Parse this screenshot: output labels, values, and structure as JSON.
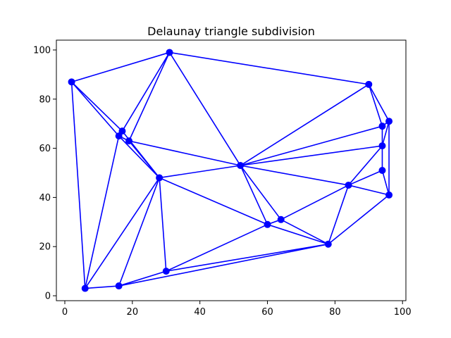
{
  "chart_data": {
    "type": "scatter",
    "title": "Delaunay triangle subdivision",
    "xlabel": "",
    "ylabel": "",
    "xlim": [
      -2.5,
      101
    ],
    "ylim": [
      -2,
      104
    ],
    "xticks": [
      0,
      20,
      40,
      60,
      80,
      100
    ],
    "yticks": [
      0,
      20,
      40,
      60,
      80,
      100
    ],
    "grid": false,
    "colors": {
      "edges": "#0000ff",
      "points": "#0000ff"
    },
    "points": [
      {
        "x": 2,
        "y": 87
      },
      {
        "x": 31,
        "y": 99
      },
      {
        "x": 90,
        "y": 86
      },
      {
        "x": 17,
        "y": 67
      },
      {
        "x": 16,
        "y": 65
      },
      {
        "x": 19,
        "y": 63
      },
      {
        "x": 96,
        "y": 71
      },
      {
        "x": 94,
        "y": 69
      },
      {
        "x": 94,
        "y": 61
      },
      {
        "x": 52,
        "y": 53
      },
      {
        "x": 94,
        "y": 51
      },
      {
        "x": 28,
        "y": 48
      },
      {
        "x": 84,
        "y": 45
      },
      {
        "x": 96,
        "y": 41
      },
      {
        "x": 64,
        "y": 31
      },
      {
        "x": 60,
        "y": 29
      },
      {
        "x": 78,
        "y": 21
      },
      {
        "x": 30,
        "y": 10
      },
      {
        "x": 6,
        "y": 3
      },
      {
        "x": 16,
        "y": 4
      }
    ],
    "edges": [
      [
        0,
        1
      ],
      [
        0,
        3
      ],
      [
        0,
        4
      ],
      [
        0,
        18
      ],
      [
        1,
        3
      ],
      [
        1,
        5
      ],
      [
        1,
        9
      ],
      [
        1,
        2
      ],
      [
        2,
        9
      ],
      [
        2,
        7
      ],
      [
        2,
        6
      ],
      [
        3,
        4
      ],
      [
        3,
        11
      ],
      [
        4,
        11
      ],
      [
        4,
        18
      ],
      [
        4,
        5
      ],
      [
        5,
        9
      ],
      [
        5,
        11
      ],
      [
        6,
        7
      ],
      [
        6,
        8
      ],
      [
        6,
        13
      ],
      [
        7,
        9
      ],
      [
        7,
        8
      ],
      [
        8,
        9
      ],
      [
        8,
        10
      ],
      [
        8,
        12
      ],
      [
        9,
        11
      ],
      [
        9,
        12
      ],
      [
        9,
        15
      ],
      [
        9,
        14
      ],
      [
        10,
        12
      ],
      [
        10,
        13
      ],
      [
        11,
        15
      ],
      [
        11,
        17
      ],
      [
        11,
        19
      ],
      [
        11,
        18
      ],
      [
        12,
        13
      ],
      [
        12,
        14
      ],
      [
        12,
        16
      ],
      [
        13,
        16
      ],
      [
        14,
        15
      ],
      [
        14,
        16
      ],
      [
        15,
        16
      ],
      [
        15,
        17
      ],
      [
        16,
        17
      ],
      [
        16,
        19
      ],
      [
        17,
        19
      ],
      [
        18,
        19
      ]
    ]
  }
}
